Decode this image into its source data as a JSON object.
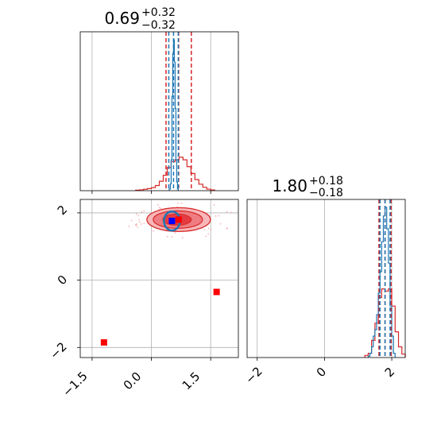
{
  "colors": {
    "red": "#d62728",
    "blue": "#1f77b4",
    "grid": "#b0b0b0",
    "marker_red": "#ff0000",
    "marker_blue": "#0000ff"
  },
  "titles": {
    "p1": {
      "value": "0.69",
      "plus": "+0.32",
      "minus": "−0.32"
    },
    "p2": {
      "value": "1.80",
      "plus": "+0.18",
      "minus": "−0.18"
    }
  },
  "ticks": {
    "p1": [
      "−1.5",
      "0.0",
      "1.5"
    ],
    "p1_values": [
      -1.5,
      0.0,
      1.5
    ],
    "p2_y": [
      "2",
      "0",
      "−2"
    ],
    "p2_y_values": [
      2,
      0,
      -2
    ],
    "p2_x": [
      "−2",
      "0",
      "2"
    ],
    "p2_x_values": [
      -2,
      0,
      2
    ]
  },
  "chart_data": {
    "type": "corner",
    "parameters": [
      {
        "median": 0.69,
        "upper_err": 0.32,
        "lower_err": 0.32,
        "range": [
          -1.8,
          2.2
        ]
      },
      {
        "median": 1.8,
        "upper_err": 0.18,
        "lower_err": 0.18,
        "range": [
          -2.3,
          2.4
        ]
      }
    ],
    "hist1": {
      "series": [
        {
          "color": "red",
          "bins": [
            -0.4,
            -0.3,
            -0.2,
            -0.1,
            0.0,
            0.1,
            0.2,
            0.3,
            0.4,
            0.5,
            0.6,
            0.7,
            0.8,
            0.9,
            1.0,
            1.1,
            1.2,
            1.3,
            1.4,
            1.5,
            1.6
          ],
          "counts": [
            0.3,
            0.5,
            0.8,
            1.2,
            1.8,
            3.0,
            5.5,
            9.0,
            13.5,
            17.0,
            18.0,
            19.5,
            18.0,
            14.0,
            10.0,
            6.5,
            3.8,
            2.0,
            0.9,
            0.4
          ]
        },
        {
          "color": "blue",
          "bins": [
            0.45,
            0.48,
            0.5,
            0.52,
            0.54,
            0.56,
            0.58,
            0.6,
            0.62,
            0.64,
            0.66,
            0.68
          ],
          "counts": [
            1.0,
            4.0,
            18.0,
            55.0,
            80.0,
            88.0,
            75.0,
            48.0,
            18.0,
            5.0,
            1.0
          ]
        }
      ],
      "red_quantiles": [
        0.37,
        0.69,
        1.01
      ],
      "blue_quantiles": [
        0.44,
        0.56,
        0.68
      ]
    },
    "hist2": {
      "series": [
        {
          "color": "red",
          "bins": [
            1.2,
            1.3,
            1.4,
            1.5,
            1.6,
            1.7,
            1.8,
            1.9,
            2.0,
            2.1,
            2.2,
            2.3,
            2.4
          ],
          "counts": [
            0.5,
            1.0,
            4.0,
            8.0,
            14.0,
            16.0,
            15.5,
            16.0,
            12.0,
            6.0,
            2.5,
            0.8
          ]
        },
        {
          "color": "blue",
          "bins": [
            1.3,
            1.35,
            1.4,
            1.45,
            1.5,
            1.55,
            1.6,
            1.65,
            1.7,
            1.75,
            1.8,
            1.85,
            1.9,
            1.95,
            2.0,
            2.05,
            2.1
          ],
          "counts": [
            0.3,
            1.0,
            2.5,
            5.0,
            6.5,
            10.0,
            15.0,
            20.0,
            27.0,
            33.0,
            35.0,
            30.0,
            22.0,
            12.0,
            5.0,
            1.0
          ]
        }
      ],
      "red_quantiles": [
        1.62,
        1.8,
        1.98
      ],
      "blue_quantiles": [
        1.65,
        1.8,
        1.95
      ]
    },
    "scatter": {
      "red_markers": [
        [
          0.69,
          1.8
        ],
        [
          1.65,
          -0.35
        ],
        [
          -1.2,
          -1.85
        ]
      ],
      "blue_marker": [
        0.52,
        1.76
      ],
      "contour_center": [
        0.69,
        1.8
      ]
    }
  }
}
